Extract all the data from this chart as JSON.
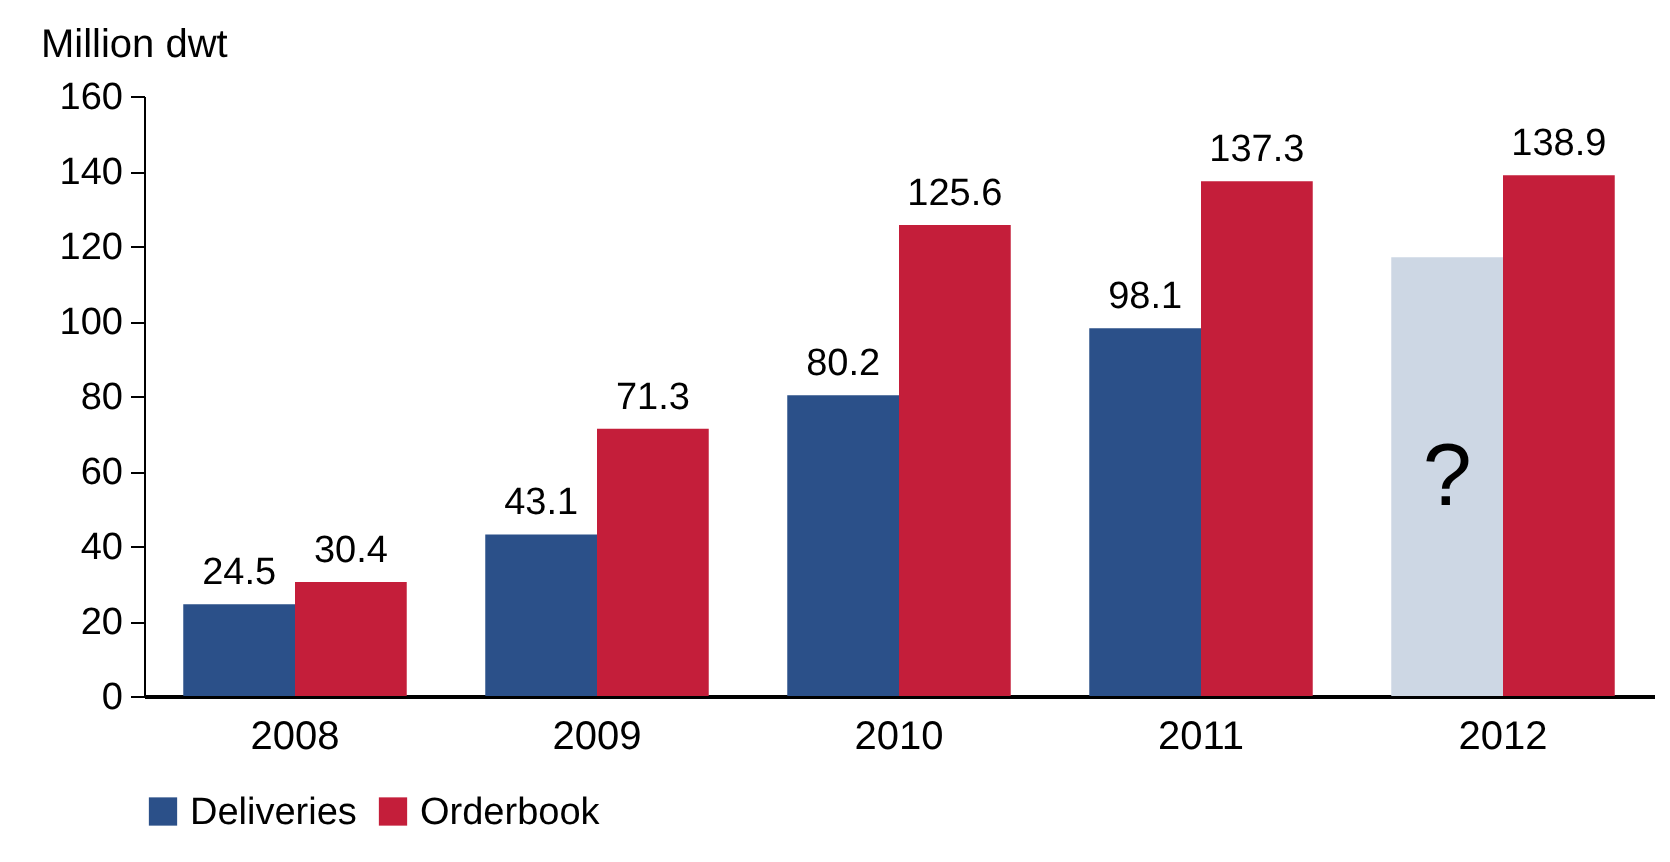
{
  "chart_data": {
    "type": "bar",
    "ylabel": "Million dwt",
    "categories": [
      "2008",
      "2009",
      "2010",
      "2011",
      "2012"
    ],
    "series": [
      {
        "name": "Deliveries",
        "color": "#2b5089",
        "colors": [
          "#2b5089",
          "#2b5089",
          "#2b5089",
          "#2b5089",
          "#cdd7e4"
        ],
        "values": [
          24.5,
          43.1,
          80.2,
          98.1,
          117
        ],
        "value_labels": [
          "24.5",
          "43.1",
          "80.2",
          "98.1",
          null
        ]
      },
      {
        "name": "Orderbook",
        "color": "#c41e3a",
        "values": [
          30.4,
          71.3,
          125.6,
          137.3,
          138.9
        ],
        "value_labels": [
          "30.4",
          "71.3",
          "125.6",
          "137.3",
          "138.9"
        ]
      }
    ],
    "annotations": [
      {
        "text": "?",
        "x": "2012",
        "y": 58
      }
    ],
    "ylim": [
      0,
      160
    ],
    "yticks": [
      0,
      20,
      40,
      60,
      80,
      100,
      120,
      140,
      160
    ],
    "grid": false,
    "legend": "bottom"
  }
}
